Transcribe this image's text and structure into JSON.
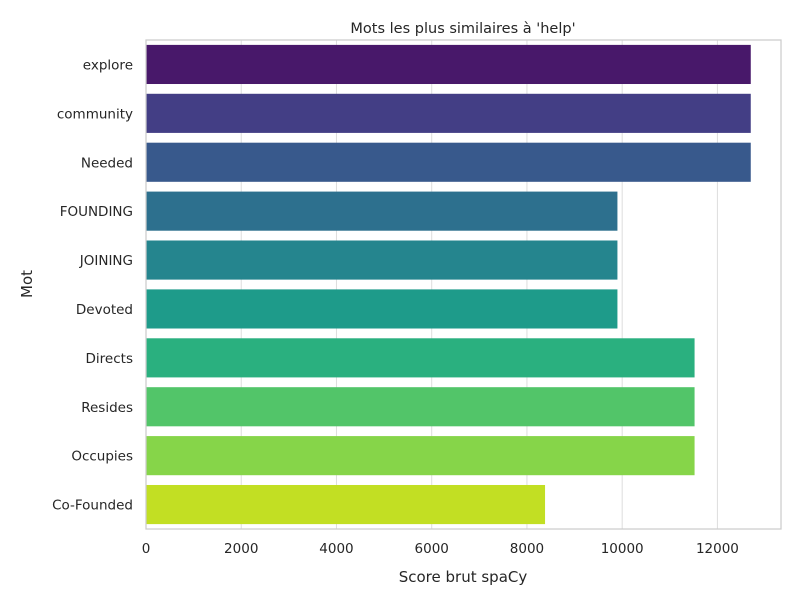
{
  "chart_data": {
    "type": "bar",
    "orientation": "horizontal",
    "title": "Mots les plus similaires à 'help'",
    "xlabel": "Score brut spaCy",
    "ylabel": "Mot",
    "categories": [
      "explore",
      "community",
      "Needed",
      "FOUNDING",
      "JOINING",
      "Devoted",
      "Directs",
      "Resides",
      "Occupies",
      "Co-Founded"
    ],
    "values": [
      12700,
      12700,
      12700,
      9900,
      9900,
      9900,
      11520,
      11520,
      11520,
      8380
    ],
    "xlim": [
      0,
      13335
    ],
    "xticks": [
      0,
      2000,
      4000,
      6000,
      8000,
      10000,
      12000
    ],
    "grid": true,
    "colors": [
      "#48186a",
      "#433e85",
      "#38598c",
      "#2d708e",
      "#25858e",
      "#1e9b8a",
      "#2ab07f",
      "#52c569",
      "#86d549",
      "#c2df23"
    ]
  }
}
